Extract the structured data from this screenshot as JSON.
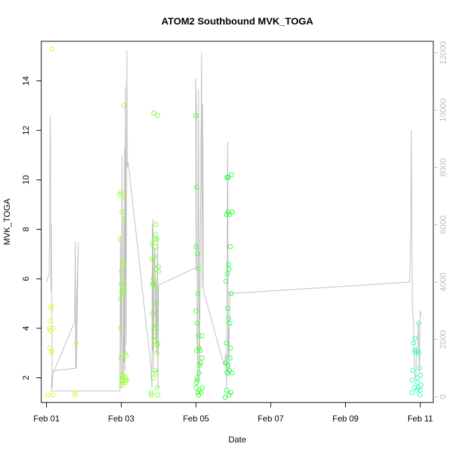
{
  "chart_data": {
    "type": "scatter",
    "title": "ATOM2 Southbound MVK_TOGA",
    "xlabel": "Date",
    "ylabel": "MVK_TOGA",
    "y2label": "",
    "x_ticks": [
      {
        "label": "Feb 01",
        "value": 1.0
      },
      {
        "label": "Feb 03",
        "value": 3.0
      },
      {
        "label": "Feb 05",
        "value": 5.0
      },
      {
        "label": "Feb 07",
        "value": 7.0
      },
      {
        "label": "Feb 09",
        "value": 9.0
      },
      {
        "label": "Feb 11",
        "value": 11.0
      }
    ],
    "xlim": [
      0.86,
      11.35
    ],
    "ylim": [
      1.0,
      15.6
    ],
    "y_ticks": [
      2,
      4,
      6,
      8,
      10,
      12,
      14
    ],
    "y2lim": [
      -200,
      12400
    ],
    "y2_ticks": [
      0,
      2000,
      4000,
      6000,
      8000,
      10000,
      12000
    ],
    "grid": false,
    "marker": "open-circle",
    "line_color": "#bebebe",
    "point_color_scale": [
      "#ccff33",
      "#a8ff33",
      "#66ff33",
      "#22ff33",
      "#22ff66",
      "#33ffcc"
    ],
    "scatter_groups": [
      {
        "color": "#ccff33",
        "points": [
          [
            1.03,
            1.3
          ],
          [
            1.08,
            4.0
          ],
          [
            1.09,
            3.2
          ],
          [
            1.1,
            4.3
          ],
          [
            1.1,
            3.9
          ],
          [
            1.12,
            4.8
          ],
          [
            1.13,
            3.0
          ],
          [
            1.13,
            4.9
          ],
          [
            1.14,
            15.3
          ],
          [
            1.15,
            3.1
          ],
          [
            1.16,
            1.3
          ],
          [
            1.17,
            4.0
          ],
          [
            1.75,
            1.4
          ],
          [
            1.77,
            1.3
          ],
          [
            1.78,
            3.4
          ]
        ]
      },
      {
        "color": "#99ff33",
        "points": [
          [
            2.96,
            9.4
          ],
          [
            2.97,
            7.6
          ],
          [
            2.98,
            5.2
          ],
          [
            2.98,
            4.0
          ],
          [
            2.99,
            2.8
          ],
          [
            3.0,
            9.5
          ],
          [
            3.0,
            6.3
          ],
          [
            3.0,
            5.8
          ],
          [
            3.01,
            5.5
          ],
          [
            3.01,
            2.1
          ],
          [
            3.02,
            1.7
          ],
          [
            3.02,
            8.7
          ],
          [
            3.03,
            2.0
          ],
          [
            3.03,
            1.8
          ],
          [
            3.04,
            6.6
          ],
          [
            3.04,
            5.9
          ],
          [
            3.05,
            6.7
          ],
          [
            3.05,
            1.9
          ],
          [
            3.06,
            2.1
          ],
          [
            3.06,
            5.4
          ],
          [
            3.07,
            8.4
          ],
          [
            3.07,
            13.0
          ],
          [
            3.08,
            9.3
          ],
          [
            3.08,
            5.6
          ],
          [
            3.09,
            3.0
          ],
          [
            3.1,
            1.8
          ],
          [
            3.11,
            2.0
          ],
          [
            3.12,
            1.9
          ],
          [
            3.13,
            2.9
          ],
          [
            3.15,
            1.9
          ]
        ]
      },
      {
        "color": "#77ff33",
        "points": [
          [
            3.8,
            1.4
          ],
          [
            3.81,
            1.3
          ],
          [
            3.82,
            6.8
          ],
          [
            3.83,
            7.4
          ],
          [
            3.84,
            5.8
          ],
          [
            3.84,
            4.6
          ],
          [
            3.85,
            2.0
          ],
          [
            3.86,
            6.0
          ],
          [
            3.86,
            5.8
          ],
          [
            3.87,
            4.0
          ],
          [
            3.87,
            12.7
          ],
          [
            3.88,
            7.6
          ],
          [
            3.88,
            6.9
          ],
          [
            3.89,
            3.5
          ],
          [
            3.9,
            3.7
          ],
          [
            3.9,
            5.6
          ],
          [
            3.91,
            2.3
          ],
          [
            3.91,
            7.3
          ],
          [
            3.92,
            6.4
          ],
          [
            3.92,
            7.8
          ],
          [
            3.93,
            8.2
          ],
          [
            3.93,
            2.2
          ],
          [
            3.94,
            5.0
          ],
          [
            3.94,
            4.1
          ],
          [
            3.95,
            3.0
          ],
          [
            3.95,
            7.6
          ],
          [
            3.96,
            3.3
          ],
          [
            3.96,
            1.6
          ],
          [
            3.97,
            12.6
          ],
          [
            3.97,
            3.4
          ],
          [
            3.98,
            1.3
          ],
          [
            3.99,
            6.5
          ],
          [
            4.0,
            6.3
          ]
        ]
      },
      {
        "color": "#44ff33",
        "points": [
          [
            4.99,
            12.6
          ],
          [
            5.0,
            7.3
          ],
          [
            5.0,
            4.7
          ],
          [
            5.01,
            1.8
          ],
          [
            5.01,
            1.6
          ],
          [
            5.02,
            9.7
          ],
          [
            5.02,
            3.1
          ],
          [
            5.03,
            2.0
          ],
          [
            5.03,
            4.2
          ],
          [
            5.04,
            1.9
          ],
          [
            5.04,
            7.0
          ],
          [
            5.05,
            5.4
          ],
          [
            5.05,
            1.4
          ],
          [
            5.06,
            3.7
          ],
          [
            5.06,
            6.4
          ],
          [
            5.07,
            1.3
          ],
          [
            5.08,
            2.2
          ],
          [
            5.08,
            3.2
          ],
          [
            5.09,
            1.5
          ],
          [
            5.1,
            2.5
          ],
          [
            5.11,
            3.1
          ],
          [
            5.12,
            2.6
          ],
          [
            5.14,
            1.4
          ],
          [
            5.15,
            3.7
          ],
          [
            5.16,
            2.8
          ],
          [
            5.17,
            1.6
          ]
        ]
      },
      {
        "color": "#22ff44",
        "points": [
          [
            5.78,
            1.2
          ],
          [
            5.8,
            2.6
          ],
          [
            5.8,
            5.9
          ],
          [
            5.81,
            3.4
          ],
          [
            5.82,
            8.6
          ],
          [
            5.82,
            1.5
          ],
          [
            5.83,
            10.1
          ],
          [
            5.83,
            2.2
          ],
          [
            5.84,
            6.2
          ],
          [
            5.85,
            4.8
          ],
          [
            5.85,
            2.5
          ],
          [
            5.86,
            10.1
          ],
          [
            5.86,
            8.7
          ],
          [
            5.87,
            6.6
          ],
          [
            5.87,
            4.4
          ],
          [
            5.88,
            6.4
          ],
          [
            5.88,
            1.3
          ],
          [
            5.89,
            2.3
          ],
          [
            5.9,
            4.2
          ],
          [
            5.9,
            8.6
          ],
          [
            5.91,
            2.8
          ],
          [
            5.92,
            7.3
          ],
          [
            5.92,
            3.2
          ],
          [
            5.93,
            1.4
          ],
          [
            5.94,
            5.4
          ],
          [
            5.95,
            10.2
          ],
          [
            5.96,
            2.2
          ],
          [
            5.97,
            8.7
          ]
        ]
      },
      {
        "color": "#33ffbb",
        "points": [
          [
            10.77,
            1.4
          ],
          [
            10.78,
            1.9
          ],
          [
            10.8,
            2.3
          ],
          [
            10.82,
            3.4
          ],
          [
            10.84,
            3.1
          ],
          [
            10.85,
            1.6
          ],
          [
            10.86,
            3.6
          ],
          [
            10.88,
            3.0
          ],
          [
            10.9,
            3.1
          ],
          [
            10.91,
            1.5
          ],
          [
            10.92,
            2.0
          ],
          [
            10.93,
            1.8
          ],
          [
            10.95,
            1.6
          ],
          [
            10.96,
            4.2
          ],
          [
            10.97,
            3.0
          ],
          [
            10.98,
            2.4
          ],
          [
            10.99,
            1.3
          ],
          [
            11.0,
            1.5
          ],
          [
            11.01,
            2.1
          ],
          [
            11.02,
            1.7
          ]
        ]
      }
    ],
    "line_series": {
      "name": "",
      "axis": "right",
      "color": "#bebebe",
      "points": [
        [
          1.0,
          4000
        ],
        [
          1.05,
          4200
        ],
        [
          1.07,
          4300
        ],
        [
          1.1,
          9800
        ],
        [
          1.12,
          3700
        ],
        [
          1.13,
          6000
        ],
        [
          1.15,
          300
        ],
        [
          1.17,
          800
        ],
        [
          1.75,
          2600
        ],
        [
          1.77,
          5400
        ],
        [
          1.78,
          1000
        ],
        [
          1.8,
          3000
        ],
        [
          1.85,
          5400
        ],
        [
          1.8,
          1000
        ],
        [
          1.15,
          900
        ],
        [
          1.13,
          200
        ],
        [
          2.96,
          200
        ],
        [
          2.98,
          5600
        ],
        [
          3.0,
          300
        ],
        [
          3.02,
          8400
        ],
        [
          3.04,
          700
        ],
        [
          3.05,
          2100
        ],
        [
          3.06,
          400
        ],
        [
          3.07,
          6300
        ],
        [
          3.08,
          1200
        ],
        [
          3.09,
          8700
        ],
        [
          3.1,
          900
        ],
        [
          3.11,
          10800
        ],
        [
          3.13,
          1800
        ],
        [
          3.15,
          12100
        ],
        [
          3.16,
          8000
        ],
        [
          3.18,
          8200
        ],
        [
          3.8,
          1000
        ],
        [
          3.82,
          300
        ],
        [
          3.83,
          6000
        ],
        [
          3.84,
          1600
        ],
        [
          3.85,
          6200
        ],
        [
          3.86,
          1000
        ],
        [
          3.88,
          4600
        ],
        [
          3.9,
          5200
        ],
        [
          3.92,
          1900
        ],
        [
          3.93,
          4100
        ],
        [
          3.95,
          1500
        ],
        [
          3.97,
          5600
        ],
        [
          3.98,
          300
        ],
        [
          4.0,
          3900
        ],
        [
          5.0,
          4500
        ],
        [
          4.99,
          11100
        ],
        [
          5.02,
          9600
        ],
        [
          5.03,
          2000
        ],
        [
          5.05,
          500
        ],
        [
          5.06,
          4200
        ],
        [
          5.07,
          10700
        ],
        [
          5.08,
          4700
        ],
        [
          5.09,
          700
        ],
        [
          5.1,
          2100
        ],
        [
          5.15,
          12000
        ],
        [
          5.16,
          3800
        ],
        [
          5.18,
          10200
        ],
        [
          5.2,
          3700
        ],
        [
          5.75,
          1100
        ],
        [
          5.8,
          1500
        ],
        [
          5.82,
          300
        ],
        [
          5.84,
          7500
        ],
        [
          5.85,
          8900
        ],
        [
          5.86,
          1300
        ],
        [
          5.87,
          2400
        ],
        [
          5.88,
          700
        ],
        [
          5.9,
          3600
        ],
        [
          10.72,
          4000
        ],
        [
          10.75,
          6100
        ],
        [
          10.76,
          9300
        ],
        [
          10.79,
          3100
        ],
        [
          10.82,
          2700
        ],
        [
          10.85,
          800
        ],
        [
          10.88,
          600
        ],
        [
          10.9,
          1600
        ],
        [
          10.93,
          1800
        ],
        [
          10.95,
          2600
        ],
        [
          10.98,
          800
        ],
        [
          11.0,
          3000
        ],
        [
          11.02,
          2800
        ]
      ]
    }
  }
}
